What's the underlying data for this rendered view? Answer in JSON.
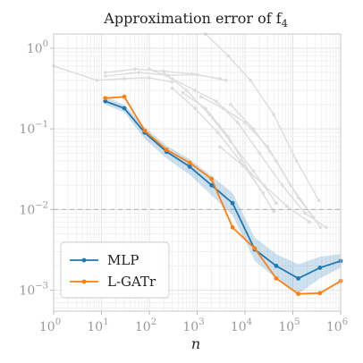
{
  "chart_data": {
    "type": "line",
    "title": "Approximation error of f",
    "title_subscript": "4",
    "xlabel": "n",
    "ylabel": "",
    "xscale": "log",
    "yscale": "log",
    "xlim": [
      1,
      1000000
    ],
    "ylim": [
      0.00055,
      1.5
    ],
    "grid": true,
    "legend_position": "bottom-left",
    "reference_line": {
      "y": 0.01,
      "style": "dashed",
      "color": "#bbbbbb"
    },
    "xticks": [
      {
        "value": 1,
        "base": "10",
        "exp": "0"
      },
      {
        "value": 10,
        "base": "10",
        "exp": "1"
      },
      {
        "value": 100,
        "base": "10",
        "exp": "2"
      },
      {
        "value": 1000,
        "base": "10",
        "exp": "3"
      },
      {
        "value": 10000,
        "base": "10",
        "exp": "4"
      },
      {
        "value": 100000,
        "base": "10",
        "exp": "5"
      },
      {
        "value": 1000000,
        "base": "10",
        "exp": "6"
      }
    ],
    "yticks": [
      {
        "value": 0.001,
        "base": "10",
        "exp": "−3"
      },
      {
        "value": 0.01,
        "base": "10",
        "exp": "−2"
      },
      {
        "value": 0.1,
        "base": "10",
        "exp": "−1"
      },
      {
        "value": 1,
        "base": "10",
        "exp": "0"
      }
    ],
    "series": [
      {
        "name": "MLP",
        "color": "#1f77b4",
        "x": [
          12,
          30,
          80,
          230,
          700,
          2000,
          5500,
          16000,
          45000,
          130000,
          370000,
          1000000
        ],
        "y": [
          0.22,
          0.18,
          0.09,
          0.052,
          0.034,
          0.02,
          0.012,
          0.0032,
          0.002,
          0.0014,
          0.0019,
          0.0023
        ],
        "band_upper": [
          0.25,
          0.2,
          0.105,
          0.062,
          0.042,
          0.026,
          0.016,
          0.0045,
          0.0028,
          0.0021,
          0.0026,
          0.0028
        ],
        "band_lower": [
          0.2,
          0.16,
          0.075,
          0.043,
          0.027,
          0.015,
          0.0085,
          0.0023,
          0.0014,
          0.0009,
          0.0014,
          0.0019
        ]
      },
      {
        "name": "L-GATr",
        "color": "#ff7f0e",
        "x": [
          12,
          30,
          80,
          230,
          700,
          2000,
          5500,
          16000,
          45000,
          130000,
          370000,
          1000000
        ],
        "y": [
          0.24,
          0.25,
          0.095,
          0.055,
          0.038,
          0.024,
          0.006,
          0.0033,
          0.0014,
          0.0009,
          0.00092,
          0.0013
        ]
      }
    ],
    "background_series": [
      {
        "color": "#dddddd",
        "x": [
          1,
          8,
          30,
          100,
          300
        ],
        "y": [
          0.6,
          0.4,
          0.42,
          0.43,
          0.38
        ]
      },
      {
        "color": "#dddddd",
        "x": [
          12,
          50,
          200,
          800,
          3000
        ],
        "y": [
          0.5,
          0.55,
          0.52,
          0.48,
          0.42
        ]
      },
      {
        "color": "#dddddd",
        "x": [
          12,
          60,
          250,
          1000,
          4000
        ],
        "y": [
          0.45,
          0.5,
          0.46,
          0.47,
          0.4
        ]
      },
      {
        "color": "#dddddd",
        "x": [
          100,
          300,
          900,
          2500,
          7000,
          20000,
          60000,
          180000,
          500000
        ],
        "y": [
          0.55,
          0.42,
          0.3,
          0.22,
          0.12,
          0.05,
          0.02,
          0.009,
          0.006
        ]
      },
      {
        "color": "#dddddd",
        "x": [
          200,
          600,
          1800,
          5000,
          15000,
          45000
        ],
        "y": [
          0.5,
          0.3,
          0.15,
          0.07,
          0.03,
          0.012
        ]
      },
      {
        "color": "#dddddd",
        "x": [
          300,
          900,
          2700,
          8000,
          24000
        ],
        "y": [
          0.32,
          0.18,
          0.09,
          0.04,
          0.016
        ]
      },
      {
        "color": "#dddddd",
        "x": [
          500,
          1500,
          4500,
          13000,
          40000
        ],
        "y": [
          0.28,
          0.18,
          0.08,
          0.028,
          0.0095
        ]
      },
      {
        "color": "#dddddd",
        "x": [
          1200,
          3500,
          10000,
          30000,
          90000,
          270000
        ],
        "y": [
          0.25,
          0.18,
          0.12,
          0.06,
          0.02,
          0.008
        ]
      },
      {
        "color": "#dddddd",
        "x": [
          1500,
          4500,
          13000,
          40000,
          120000,
          350000
        ],
        "y": [
          1.5,
          0.8,
          0.4,
          0.15,
          0.04,
          0.013
        ]
      },
      {
        "color": "#dddddd",
        "x": [
          5000,
          15000,
          45000,
          130000,
          380000
        ],
        "y": [
          0.2,
          0.1,
          0.04,
          0.014,
          0.006
        ]
      },
      {
        "color": "#dddddd",
        "x": [
          3000,
          9000,
          25000,
          75000,
          220000
        ],
        "y": [
          0.06,
          0.035,
          0.02,
          0.011,
          0.007
        ]
      }
    ]
  }
}
